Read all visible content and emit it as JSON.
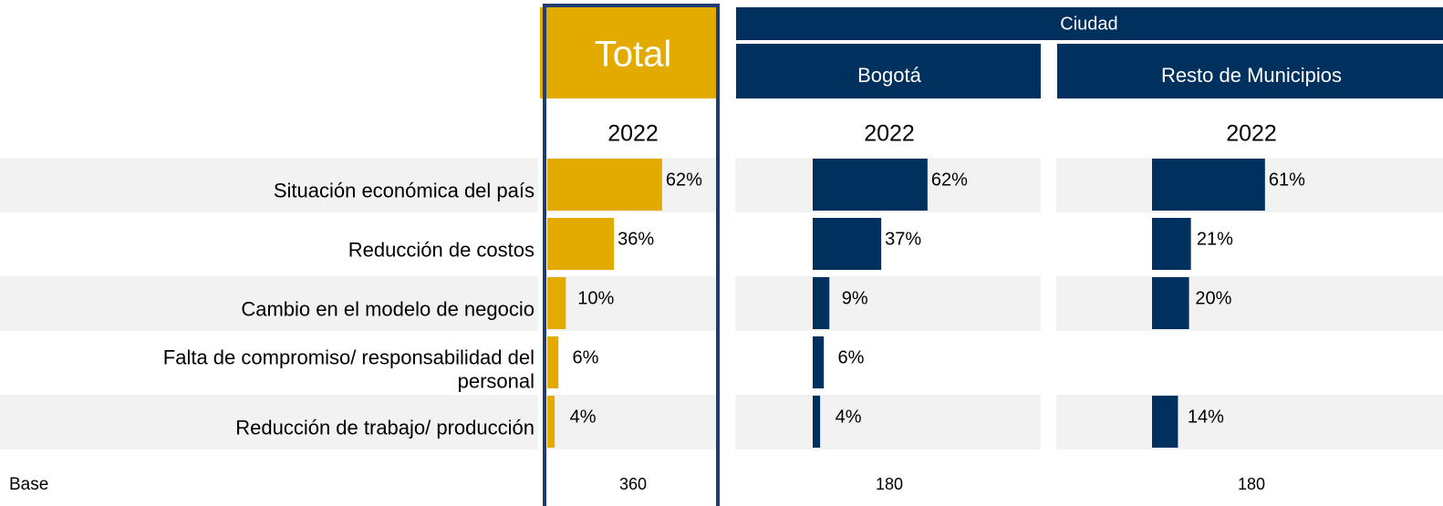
{
  "chart_data": {
    "type": "bar",
    "orientation": "horizontal",
    "group_label": "Ciudad",
    "base_label": "Base",
    "categories": [
      "Situación económica del país",
      "Reducción de costos",
      "Cambio en el modelo de negocio",
      "Falta de compromiso/ responsabilidad del personal",
      "Reducción de trabajo/ producción"
    ],
    "series": [
      {
        "name": "Total",
        "year": "2022",
        "color": "#e3ab00",
        "values": [
          62,
          36,
          10,
          6,
          4
        ],
        "value_labels": [
          "62%",
          "36%",
          "10%",
          "6%",
          "4%"
        ],
        "base": 360
      },
      {
        "name": "Bogotá",
        "year": "2022",
        "color": "#00305e",
        "values": [
          62,
          37,
          9,
          6,
          4
        ],
        "value_labels": [
          "62%",
          "37%",
          "9%",
          "6%",
          "4%"
        ],
        "base": 180
      },
      {
        "name": "Resto de Municipios",
        "year": "2022",
        "color": "#00305e",
        "values": [
          61,
          21,
          20,
          null,
          14
        ],
        "value_labels": [
          "61%",
          "21%",
          "20%",
          null,
          "14%"
        ],
        "base": 180
      }
    ]
  }
}
